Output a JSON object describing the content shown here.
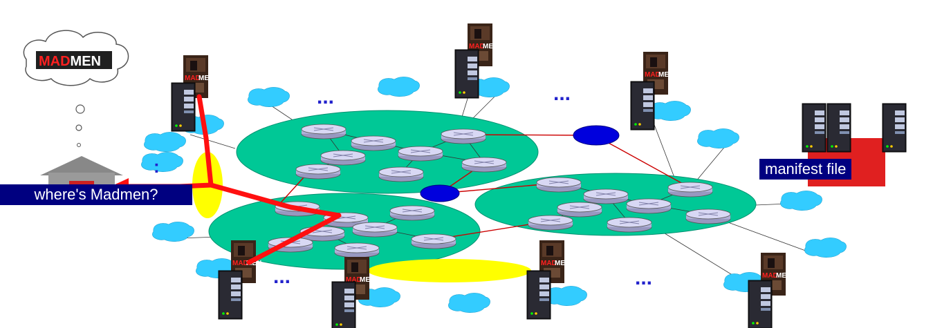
{
  "labels": {
    "client_query": "where's Madmen?",
    "manifest": "manifest file",
    "logo_text": "MADMEN",
    "dots": "..."
  },
  "colors": {
    "network": "#00c896",
    "cloud": "#33ccff",
    "router": "#c8c8ec",
    "ixp": "#0000dd",
    "highlight": "#ffff00",
    "path": "#ff0000",
    "link_red": "#cc0000",
    "label_bg": "#000080",
    "manifest_bg": "#e02020"
  }
}
